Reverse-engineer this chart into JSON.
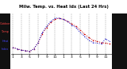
{
  "title": "Milw. Temp. vs. Heat Idx (Last 24 Hrs)",
  "background_color": "#ffffff",
  "plot_bg": "#ffffff",
  "legend_bg": "#111111",
  "right_bg": "#111111",
  "grid_color": "#888888",
  "time_points": [
    0,
    1,
    2,
    3,
    4,
    5,
    6,
    7,
    8,
    9,
    10,
    11,
    12,
    13,
    14,
    15,
    16,
    17,
    18,
    19,
    20,
    21,
    22,
    23
  ],
  "temp": [
    28,
    26,
    24,
    23,
    22,
    26,
    36,
    50,
    60,
    68,
    73,
    75,
    73,
    70,
    66,
    62,
    56,
    50,
    44,
    40,
    38,
    36,
    35,
    34
  ],
  "heat_index": [
    28,
    26,
    24,
    23,
    22,
    26,
    36,
    52,
    62,
    70,
    75,
    75,
    73,
    70,
    64,
    60,
    52,
    46,
    40,
    36,
    35,
    34,
    42,
    38
  ],
  "temp_color": "#cc0000",
  "heat_color": "#0000cc",
  "ylim": [
    18,
    82
  ],
  "ytick_vals": [
    25,
    35,
    45,
    55,
    65,
    75
  ],
  "ytick_labels": [
    "25",
    "35",
    "45",
    "55",
    "65",
    "75"
  ],
  "xtick_positions": [
    0,
    2,
    4,
    6,
    8,
    10,
    12,
    14,
    16,
    18,
    20,
    22
  ],
  "xtick_labels": [
    "1",
    "3",
    "5",
    "7",
    "9",
    "11",
    "1",
    "3",
    "5",
    "7",
    "9",
    "11"
  ],
  "title_fontsize": 3.8,
  "tick_fontsize": 3.2,
  "legend_text_red": [
    "Outdoor",
    "Temp"
  ],
  "legend_text_blue": [
    "Heat",
    "Index"
  ]
}
